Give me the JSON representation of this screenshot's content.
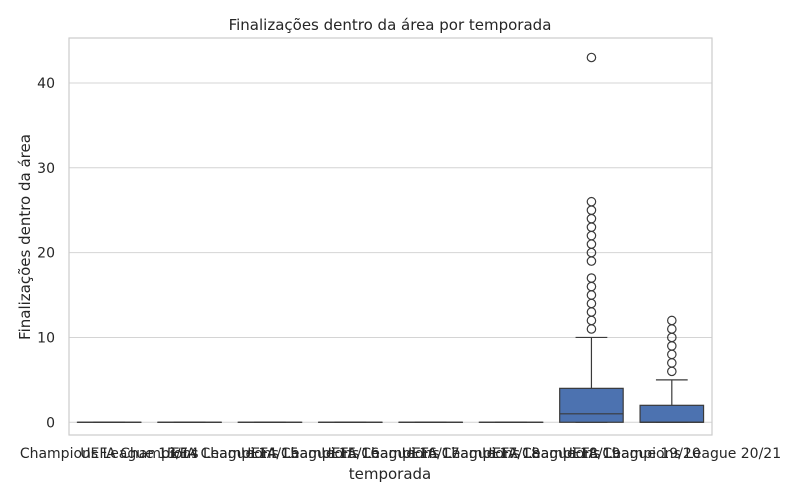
{
  "chart_data": {
    "type": "box",
    "title": "Finalizações dentro da área por temporada",
    "xlabel": "temporada",
    "ylabel": "Finalizações dentro da área",
    "ylim": [
      -1.5,
      45.3
    ],
    "yticks": [
      0,
      10,
      20,
      30,
      40
    ],
    "grid": "horizontal",
    "colors": {
      "box": "#4c72b0",
      "line": "#3a3a3a",
      "grid": "#d4d4d4",
      "frame": "#cccccc"
    },
    "categories": [
      "Champions League 13/14",
      "UEFA Champions League 14/15",
      "UEFA Champions League 15/16",
      "UEFA Champions League 16/17",
      "UEFA Champions League 17/18",
      "UEFA Champions League 18/19",
      "UEFA Champions League 19/20",
      "UEFA Champions League 20/21"
    ],
    "boxes": [
      {
        "whisker_low": 0,
        "q1": 0,
        "median": 0,
        "q3": 0,
        "whisker_high": 0,
        "outliers": []
      },
      {
        "whisker_low": 0,
        "q1": 0,
        "median": 0,
        "q3": 0,
        "whisker_high": 0,
        "outliers": []
      },
      {
        "whisker_low": 0,
        "q1": 0,
        "median": 0,
        "q3": 0,
        "whisker_high": 0,
        "outliers": []
      },
      {
        "whisker_low": 0,
        "q1": 0,
        "median": 0,
        "q3": 0,
        "whisker_high": 0,
        "outliers": []
      },
      {
        "whisker_low": 0,
        "q1": 0,
        "median": 0,
        "q3": 0,
        "whisker_high": 0,
        "outliers": []
      },
      {
        "whisker_low": 0,
        "q1": 0,
        "median": 0,
        "q3": 0,
        "whisker_high": 0,
        "outliers": []
      },
      {
        "whisker_low": 0,
        "q1": 0,
        "median": 1,
        "q3": 4,
        "whisker_high": 10,
        "outliers": [
          11,
          12,
          13,
          14,
          15,
          16,
          17,
          19,
          20,
          21,
          22,
          23,
          24,
          25,
          26,
          43
        ]
      },
      {
        "whisker_low": 0,
        "q1": 0,
        "median": 0,
        "q3": 2,
        "whisker_high": 5,
        "outliers": [
          6,
          7,
          8,
          9,
          10,
          11,
          12
        ]
      }
    ]
  }
}
